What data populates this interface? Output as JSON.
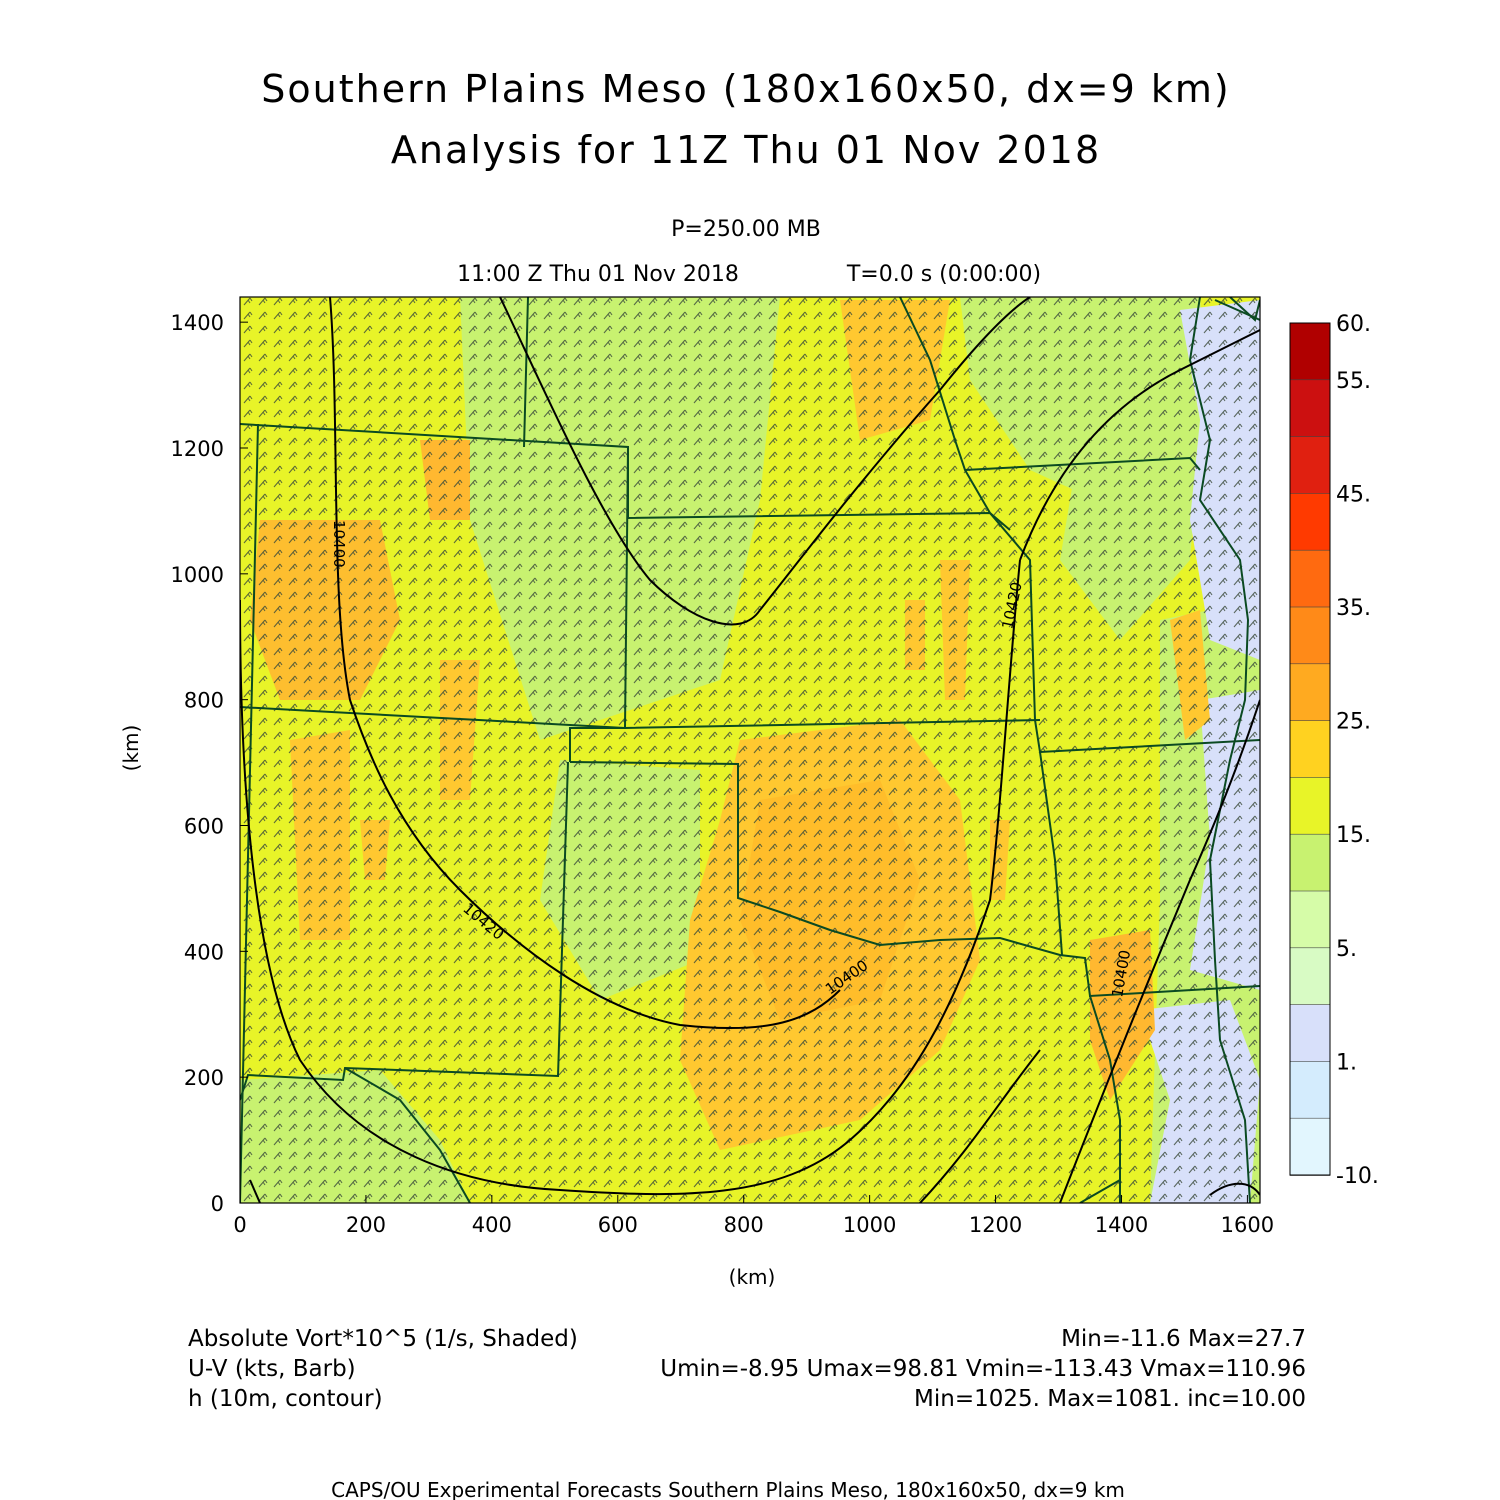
{
  "title": {
    "line1": "Southern Plains Meso (180x160x50, dx=9 km)",
    "line2": "Analysis for 11Z Thu 01 Nov 2018"
  },
  "subtitle": {
    "level": "P=250.00 MB",
    "time": "11:00 Z Thu 01 Nov 2018",
    "tstep": "T=0.0 s (0:00:00)"
  },
  "axes": {
    "xlabel": "(km)",
    "ylabel": "(km)",
    "xticks": [
      "0",
      "200",
      "400",
      "600",
      "800",
      "1000",
      "1200",
      "1400",
      "1600"
    ],
    "yticks": [
      "0",
      "200",
      "400",
      "600",
      "800",
      "1000",
      "1200",
      "1400"
    ]
  },
  "colorbar": {
    "labels": [
      "60.",
      "55.",
      "45.",
      "35.",
      "25.",
      "15.",
      "5.",
      "1.",
      "-10."
    ],
    "colors": [
      "#b00000",
      "#cc1010",
      "#e02010",
      "#ff3a00",
      "#ff6a10",
      "#ff8a18",
      "#ffaa20",
      "#ffd220",
      "#e8f428",
      "#c8f270",
      "#d6fca8",
      "#d8fbc4",
      "#d8e0fa",
      "#d4ecfd",
      "#e2f6fe"
    ]
  },
  "contours": {
    "labels": [
      "10400",
      "10420",
      "10400",
      "10420",
      "10400",
      "10400"
    ]
  },
  "footer": {
    "vort": "Absolute Vort*10^5 (1/s, Shaded)",
    "vort_range": "Min=-11.6 Max=27.7",
    "wind": "U-V (kts, Barb)",
    "wind_range": "Umin=-8.95 Umax=98.81 Vmin=-113.43 Vmax=110.96",
    "height": "h (10m, contour)",
    "height_range": "Min=1025. Max=1081. inc=10.00",
    "credit": "CAPS/OU Experimental Forecasts  Southern Plains Meso, 180x160x50, dx=9 km"
  }
}
